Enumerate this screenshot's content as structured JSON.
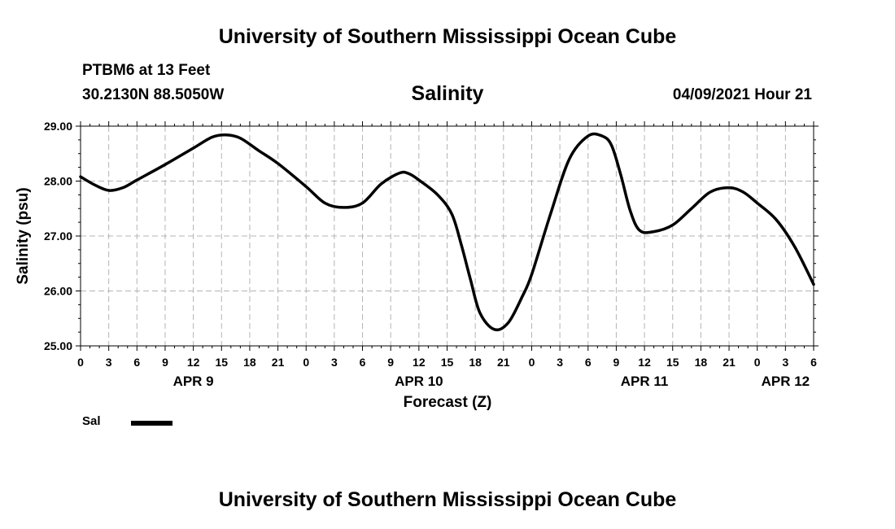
{
  "header": "University of Southern Mississippi Ocean Cube",
  "footer": "University of Southern Mississippi Ocean Cube",
  "station": "PTBM6 at 13 Feet",
  "coords": "30.2130N  88.5050W",
  "date_label": "04/09/2021 Hour 21",
  "legend": {
    "label": "Sal",
    "color": "#000000"
  },
  "chart_data": {
    "type": "line",
    "title": "Salinity",
    "xlabel": "Forecast (Z)",
    "ylabel": "Salinity (psu)",
    "ylim": [
      25.0,
      29.0
    ],
    "xlim": [
      0,
      78
    ],
    "y_ticks": [
      "25.00",
      "26.00",
      "27.00",
      "28.00",
      "29.00"
    ],
    "x_ticks": [
      "0",
      "3",
      "6",
      "9",
      "12",
      "15",
      "18",
      "21",
      "0",
      "3",
      "6",
      "9",
      "12",
      "15",
      "18",
      "21",
      "0",
      "3",
      "6",
      "9",
      "12",
      "15",
      "18",
      "21",
      "0",
      "3",
      "6"
    ],
    "day_labels": [
      {
        "label": "APR 9",
        "hour": 12
      },
      {
        "label": "APR 10",
        "hour": 36
      },
      {
        "label": "APR 11",
        "hour": 60
      },
      {
        "label": "APR 12",
        "hour": 75
      }
    ],
    "series": [
      {
        "name": "Sal",
        "x": [
          0,
          1.5,
          3,
          4.5,
          6,
          9,
          12,
          14,
          15.5,
          17,
          19,
          21,
          24,
          26,
          28,
          30,
          32,
          34,
          35,
          36,
          38,
          39.5,
          40.5,
          41.5,
          42.5,
          44,
          45.5,
          47,
          48,
          50,
          52,
          54,
          55.5,
          56.5,
          57.5,
          58.5,
          59.5,
          61,
          63,
          65,
          67,
          69,
          70.5,
          72,
          74,
          76,
          78
        ],
        "values": [
          28.08,
          27.93,
          27.83,
          27.88,
          28.02,
          28.3,
          28.6,
          28.8,
          28.84,
          28.78,
          28.55,
          28.32,
          27.9,
          27.6,
          27.52,
          27.6,
          27.95,
          28.15,
          28.13,
          28.02,
          27.75,
          27.4,
          26.85,
          26.2,
          25.6,
          25.3,
          25.42,
          25.9,
          26.3,
          27.4,
          28.4,
          28.82,
          28.82,
          28.65,
          28.1,
          27.45,
          27.1,
          27.08,
          27.2,
          27.5,
          27.8,
          27.88,
          27.8,
          27.6,
          27.3,
          26.8,
          26.12
        ]
      }
    ]
  }
}
